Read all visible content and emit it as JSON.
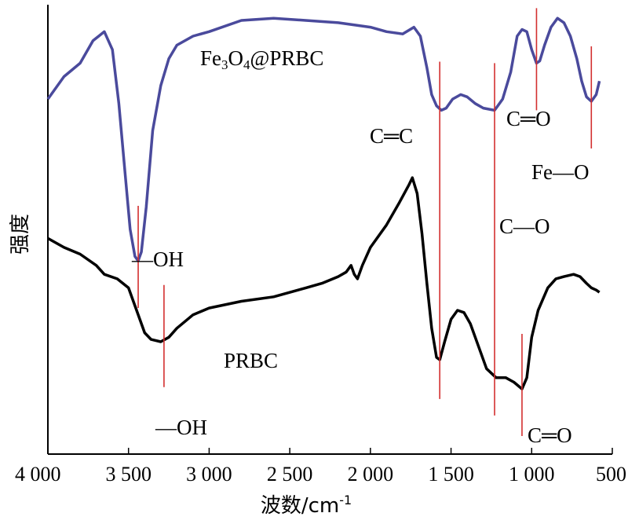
{
  "chart_data": {
    "type": "line",
    "xlabel": "波数/cm-1",
    "xlabel_main": "波数/cm",
    "xlabel_sup": "-1",
    "ylabel": "强度",
    "xlim": [
      4000,
      500
    ],
    "x_reversed": true,
    "yaxis_ticks": false,
    "grid": false,
    "colors": {
      "top": "#4a4a9c",
      "bottom": "#000000",
      "marker": "#d32f2f"
    },
    "x_ticks": [
      {
        "value": 4000,
        "label": "4 000"
      },
      {
        "value": 3500,
        "label": "3 500"
      },
      {
        "value": 3000,
        "label": "3 000"
      },
      {
        "value": 2500,
        "label": "2 500"
      },
      {
        "value": 2000,
        "label": "2 000"
      },
      {
        "value": 1500,
        "label": "1 500"
      },
      {
        "value": 1000,
        "label": "1 000"
      },
      {
        "value": 500,
        "label": "500"
      }
    ],
    "series": [
      {
        "name": "Fe3O4@PRBC",
        "label_main": "Fe",
        "label_sub1": "3",
        "label_mid": "O",
        "label_sub2": "4",
        "label_rest": "@PRBC",
        "color": "#4a4a9c",
        "points": [
          [
            4000,
            0.79
          ],
          [
            3900,
            0.84
          ],
          [
            3800,
            0.87
          ],
          [
            3720,
            0.92
          ],
          [
            3650,
            0.94
          ],
          [
            3600,
            0.9
          ],
          [
            3560,
            0.78
          ],
          [
            3520,
            0.62
          ],
          [
            3490,
            0.5
          ],
          [
            3460,
            0.44
          ],
          [
            3440,
            0.43
          ],
          [
            3420,
            0.45
          ],
          [
            3390,
            0.55
          ],
          [
            3350,
            0.72
          ],
          [
            3300,
            0.82
          ],
          [
            3250,
            0.88
          ],
          [
            3200,
            0.91
          ],
          [
            3100,
            0.93
          ],
          [
            3000,
            0.94
          ],
          [
            2800,
            0.965
          ],
          [
            2600,
            0.97
          ],
          [
            2400,
            0.965
          ],
          [
            2200,
            0.96
          ],
          [
            2000,
            0.95
          ],
          [
            1900,
            0.94
          ],
          [
            1800,
            0.935
          ],
          [
            1730,
            0.95
          ],
          [
            1690,
            0.93
          ],
          [
            1650,
            0.86
          ],
          [
            1620,
            0.8
          ],
          [
            1590,
            0.775
          ],
          [
            1560,
            0.765
          ],
          [
            1530,
            0.77
          ],
          [
            1490,
            0.79
          ],
          [
            1440,
            0.8
          ],
          [
            1400,
            0.795
          ],
          [
            1350,
            0.78
          ],
          [
            1300,
            0.77
          ],
          [
            1230,
            0.765
          ],
          [
            1180,
            0.79
          ],
          [
            1130,
            0.85
          ],
          [
            1090,
            0.93
          ],
          [
            1060,
            0.945
          ],
          [
            1030,
            0.94
          ],
          [
            1000,
            0.9
          ],
          [
            970,
            0.87
          ],
          [
            950,
            0.875
          ],
          [
            920,
            0.91
          ],
          [
            880,
            0.95
          ],
          [
            840,
            0.97
          ],
          [
            800,
            0.96
          ],
          [
            760,
            0.93
          ],
          [
            720,
            0.88
          ],
          [
            690,
            0.83
          ],
          [
            660,
            0.795
          ],
          [
            630,
            0.785
          ],
          [
            600,
            0.8
          ],
          [
            580,
            0.83
          ]
        ]
      },
      {
        "name": "PRBC",
        "label_main": "PRBC",
        "color": "#000000",
        "points": [
          [
            4000,
            0.48
          ],
          [
            3900,
            0.46
          ],
          [
            3800,
            0.445
          ],
          [
            3700,
            0.42
          ],
          [
            3650,
            0.4
          ],
          [
            3570,
            0.39
          ],
          [
            3500,
            0.37
          ],
          [
            3450,
            0.32
          ],
          [
            3400,
            0.27
          ],
          [
            3360,
            0.255
          ],
          [
            3300,
            0.25
          ],
          [
            3250,
            0.26
          ],
          [
            3200,
            0.28
          ],
          [
            3100,
            0.31
          ],
          [
            3000,
            0.325
          ],
          [
            2800,
            0.34
          ],
          [
            2600,
            0.35
          ],
          [
            2400,
            0.37
          ],
          [
            2300,
            0.38
          ],
          [
            2200,
            0.395
          ],
          [
            2150,
            0.405
          ],
          [
            2120,
            0.42
          ],
          [
            2100,
            0.4
          ],
          [
            2080,
            0.39
          ],
          [
            2050,
            0.42
          ],
          [
            2000,
            0.46
          ],
          [
            1900,
            0.51
          ],
          [
            1820,
            0.56
          ],
          [
            1760,
            0.6
          ],
          [
            1740,
            0.615
          ],
          [
            1710,
            0.58
          ],
          [
            1680,
            0.49
          ],
          [
            1650,
            0.38
          ],
          [
            1620,
            0.28
          ],
          [
            1590,
            0.215
          ],
          [
            1570,
            0.21
          ],
          [
            1540,
            0.25
          ],
          [
            1500,
            0.3
          ],
          [
            1460,
            0.32
          ],
          [
            1420,
            0.315
          ],
          [
            1380,
            0.29
          ],
          [
            1330,
            0.24
          ],
          [
            1280,
            0.19
          ],
          [
            1220,
            0.17
          ],
          [
            1160,
            0.17
          ],
          [
            1110,
            0.16
          ],
          [
            1060,
            0.145
          ],
          [
            1030,
            0.17
          ],
          [
            1000,
            0.26
          ],
          [
            960,
            0.32
          ],
          [
            900,
            0.37
          ],
          [
            850,
            0.39
          ],
          [
            800,
            0.395
          ],
          [
            740,
            0.4
          ],
          [
            700,
            0.395
          ],
          [
            660,
            0.38
          ],
          [
            630,
            0.37
          ],
          [
            600,
            0.365
          ],
          [
            580,
            0.36
          ]
        ]
      }
    ],
    "markers": [
      {
        "x": 3440,
        "series": "Fe3O4@PRBC",
        "label_dash": "—",
        "label": "OH"
      },
      {
        "x": 3280,
        "series": "PRBC",
        "label_dash": "—",
        "label": "OH"
      },
      {
        "x": 1570,
        "series": "both",
        "label_left": "C",
        "label_bond": "═",
        "label_right": "C"
      },
      {
        "x": 1230,
        "series": "both",
        "label_left": "C",
        "label_bond": "—",
        "label_right": "O"
      },
      {
        "x": 970,
        "series": "Fe3O4@PRBC",
        "label_left": "C",
        "label_bond": "═",
        "label_right": "O"
      },
      {
        "x": 1060,
        "series": "PRBC",
        "label_left": "C",
        "label_bond": "═",
        "label_right": "O"
      },
      {
        "x": 630,
        "series": "Fe3O4@PRBC",
        "label_left": "Fe",
        "label_bond": "—",
        "label_right": "O"
      }
    ]
  }
}
